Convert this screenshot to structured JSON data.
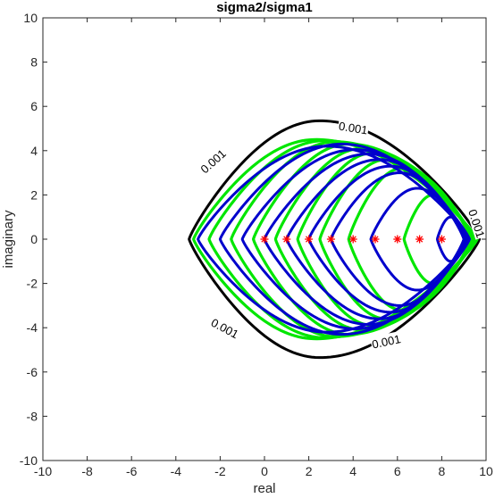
{
  "chart_data": {
    "type": "line",
    "title": "sigma2/sigma1",
    "xlabel": "real",
    "ylabel": "imaginary",
    "xlim": [
      -10,
      10
    ],
    "ylim": [
      -10,
      10
    ],
    "xticks": [
      -10,
      -8,
      -6,
      -4,
      -2,
      0,
      2,
      4,
      6,
      8,
      10
    ],
    "yticks": [
      -10,
      -8,
      -6,
      -4,
      -2,
      0,
      2,
      4,
      6,
      8,
      10
    ],
    "grid": false,
    "colors": {
      "contour": "#000000",
      "blue": "#0000cc",
      "green": "#00e600",
      "eig": "#ff0000"
    },
    "contour": {
      "level_label": "0.001",
      "left_x": -3.4,
      "right_x": 9.7,
      "top_y": 5.35,
      "bottom_y": -5.35,
      "top_x": 2.5
    },
    "eigenvalues": [
      0,
      1,
      2,
      3,
      4,
      5,
      6,
      7,
      8
    ],
    "blue_curves": [
      {
        "left": -3.0,
        "right": 9.25,
        "half_height": 4.2,
        "top_x": 2.8
      },
      {
        "left": -2.0,
        "right": 9.25,
        "half_height": 4.3,
        "top_x": 3.5
      },
      {
        "left": -1.0,
        "right": 9.2,
        "half_height": 4.05,
        "top_x": 4.1
      },
      {
        "left": 0.0,
        "right": 9.15,
        "half_height": 3.85,
        "top_x": 4.7
      },
      {
        "left": 1.0,
        "right": 9.1,
        "half_height": 3.6,
        "top_x": 5.2
      },
      {
        "left": 2.0,
        "right": 9.05,
        "half_height": 3.3,
        "top_x": 5.7
      },
      {
        "left": 3.0,
        "right": 9.0,
        "half_height": 3.0,
        "top_x": 6.1
      },
      {
        "left": 4.8,
        "right": 9.0,
        "half_height": 2.3,
        "top_x": 6.9
      },
      {
        "left": 7.8,
        "right": 9.0,
        "half_height": 1.0,
        "top_x": 8.4
      }
    ],
    "green_curves": [
      {
        "left": -3.2,
        "right": 9.6,
        "half_height": 4.5,
        "top_x": 2.3
      },
      {
        "left": -2.5,
        "right": 9.55,
        "half_height": 4.45,
        "top_x": 2.7
      },
      {
        "left": -1.5,
        "right": 9.5,
        "half_height": 4.4,
        "top_x": 3.2
      },
      {
        "left": -0.5,
        "right": 9.5,
        "half_height": 4.3,
        "top_x": 3.8
      },
      {
        "left": 0.5,
        "right": 9.45,
        "half_height": 4.1,
        "top_x": 4.4
      },
      {
        "left": 1.5,
        "right": 9.4,
        "half_height": 3.9,
        "top_x": 4.9
      },
      {
        "left": 2.5,
        "right": 9.4,
        "half_height": 3.6,
        "top_x": 5.5
      },
      {
        "left": 3.8,
        "right": 9.35,
        "half_height": 3.2,
        "top_x": 6.2
      },
      {
        "left": 6.3,
        "right": 9.3,
        "half_height": 2.0,
        "top_x": 7.6
      }
    ]
  }
}
